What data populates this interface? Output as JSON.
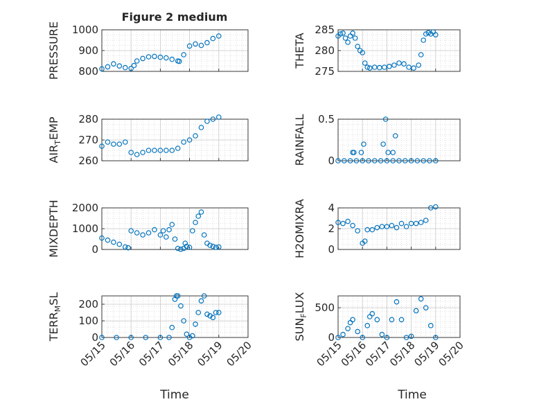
{
  "figure": {
    "title": "Figure 2 medium",
    "xlabel": "Time"
  },
  "colors": {
    "marker": "#0072BD",
    "axis": "#262626",
    "grid": "#c8c8c8"
  },
  "chart_data": [
    {
      "type": "scatter",
      "label_main": "PRESSURE",
      "label_sub": "",
      "label_tail": "",
      "xlim": [
        0,
        5
      ],
      "ylim": [
        800,
        1000
      ],
      "yticks": [
        800,
        900,
        1000
      ],
      "xtick_labels": [
        "05/15",
        "05/16",
        "05/17",
        "05/18",
        "05/19",
        "05/20"
      ],
      "show_xtick_labels": false,
      "series": [
        {
          "x": [
            0,
            0.2,
            0.4,
            0.6,
            0.8,
            1.0,
            1.1,
            1.2,
            1.4,
            1.6,
            1.8,
            2.0,
            2.2,
            2.4,
            2.6,
            2.65,
            2.8,
            3.0,
            3.2,
            3.4,
            3.6,
            3.8,
            4.0
          ],
          "y": [
            812,
            822,
            836,
            826,
            818,
            814,
            828,
            850,
            862,
            870,
            872,
            868,
            865,
            858,
            850,
            848,
            880,
            922,
            932,
            925,
            938,
            958,
            970
          ]
        }
      ]
    },
    {
      "type": "scatter",
      "label_main": "THETA",
      "label_sub": "",
      "label_tail": "",
      "xlim": [
        0,
        5
      ],
      "ylim": [
        275,
        285
      ],
      "yticks": [
        275,
        280,
        285
      ],
      "xtick_labels": [
        "05/15",
        "05/16",
        "05/17",
        "05/18",
        "05/19",
        "05/20"
      ],
      "show_xtick_labels": false,
      "series": [
        {
          "x": [
            0,
            0.1,
            0.2,
            0.3,
            0.4,
            0.5,
            0.6,
            0.7,
            0.8,
            0.9,
            1.0,
            1.1,
            1.2,
            1.3,
            1.5,
            1.7,
            1.9,
            2.1,
            2.3,
            2.5,
            2.7,
            2.9,
            3.1,
            3.3,
            3.4,
            3.5,
            3.6,
            3.7,
            3.8,
            3.9,
            4.0
          ],
          "y": [
            283.5,
            284,
            284.2,
            283,
            282,
            283.5,
            284.2,
            283,
            281,
            280,
            279.5,
            277,
            276,
            275.8,
            276,
            275.9,
            276,
            276.2,
            276.5,
            277,
            276.8,
            276,
            275.8,
            276.5,
            279,
            282.5,
            284,
            284.3,
            284,
            284.5,
            283.8
          ]
        }
      ]
    },
    {
      "type": "scatter",
      "label_main": "AIR",
      "label_sub": "T",
      "label_tail": "EMP",
      "xlim": [
        0,
        5
      ],
      "ylim": [
        260,
        280
      ],
      "yticks": [
        260,
        270,
        280
      ],
      "xtick_labels": [
        "05/15",
        "05/16",
        "05/17",
        "05/18",
        "05/19",
        "05/20"
      ],
      "show_xtick_labels": false,
      "series": [
        {
          "x": [
            0,
            0.2,
            0.4,
            0.6,
            0.8,
            1.0,
            1.2,
            1.4,
            1.6,
            1.8,
            2.0,
            2.2,
            2.4,
            2.6,
            2.8,
            3.0,
            3.2,
            3.4,
            3.6,
            3.8,
            4.0
          ],
          "y": [
            267,
            269,
            268,
            268,
            269,
            264,
            263,
            264,
            265,
            265,
            265,
            265,
            265,
            266,
            269,
            270,
            272,
            276,
            279,
            280,
            281
          ]
        }
      ]
    },
    {
      "type": "scatter",
      "label_main": "RAINFALL",
      "label_sub": "",
      "label_tail": "",
      "xlim": [
        0,
        5
      ],
      "ylim": [
        0,
        0.5
      ],
      "yticks": [
        0,
        0.5
      ],
      "xtick_labels": [
        "05/15",
        "05/16",
        "05/17",
        "05/18",
        "05/19",
        "05/20"
      ],
      "show_xtick_labels": false,
      "series": [
        {
          "x": [
            0,
            0.25,
            0.5,
            0.75,
            1.0,
            1.25,
            1.5,
            1.75,
            2.0,
            2.25,
            2.5,
            2.75,
            3.0,
            3.25,
            3.5,
            3.75,
            4.0,
            0.6,
            0.65,
            0.95,
            1.05,
            1.85,
            1.95,
            2.05,
            2.25,
            2.35
          ],
          "y": [
            0,
            0,
            0,
            0,
            0,
            0,
            0,
            0,
            0,
            0,
            0,
            0,
            0,
            0,
            0,
            0,
            0,
            0.1,
            0.1,
            0.1,
            0.2,
            0.2,
            0.5,
            0.1,
            0.1,
            0.3
          ]
        }
      ]
    },
    {
      "type": "scatter",
      "label_main": "MIXDEPTH",
      "label_sub": "",
      "label_tail": "",
      "xlim": [
        0,
        5
      ],
      "ylim": [
        0,
        2000
      ],
      "yticks": [
        0,
        1000,
        2000
      ],
      "xtick_labels": [
        "05/15",
        "05/16",
        "05/17",
        "05/18",
        "05/19",
        "05/20"
      ],
      "show_xtick_labels": false,
      "series": [
        {
          "x": [
            0,
            0.2,
            0.4,
            0.6,
            0.8,
            0.9,
            1.0,
            1.2,
            1.4,
            1.6,
            1.8,
            2.0,
            2.1,
            2.2,
            2.3,
            2.4,
            2.5,
            2.6,
            2.7,
            2.8,
            2.85,
            2.9,
            3.0,
            3.1,
            3.2,
            3.3,
            3.4,
            3.5,
            3.6,
            3.7,
            3.8,
            3.9,
            4.0
          ],
          "y": [
            550,
            450,
            350,
            250,
            120,
            80,
            900,
            800,
            700,
            800,
            950,
            700,
            900,
            600,
            950,
            1200,
            500,
            50,
            10,
            50,
            300,
            150,
            100,
            900,
            1300,
            1600,
            1800,
            700,
            300,
            200,
            150,
            100,
            120
          ]
        }
      ]
    },
    {
      "type": "scatter",
      "label_main": "H2OMIXRA",
      "label_sub": "",
      "label_tail": "",
      "xlim": [
        0,
        5
      ],
      "ylim": [
        0,
        4
      ],
      "yticks": [
        0,
        2,
        4
      ],
      "xtick_labels": [
        "05/15",
        "05/16",
        "05/17",
        "05/18",
        "05/19",
        "05/20"
      ],
      "show_xtick_labels": false,
      "series": [
        {
          "x": [
            0,
            0.2,
            0.4,
            0.6,
            0.8,
            1.0,
            1.1,
            1.2,
            1.4,
            1.6,
            1.8,
            2.0,
            2.2,
            2.4,
            2.6,
            2.8,
            3.0,
            3.2,
            3.4,
            3.6,
            3.8,
            4.0
          ],
          "y": [
            2.6,
            2.5,
            2.7,
            2.3,
            1.8,
            0.6,
            0.8,
            1.9,
            1.9,
            2.1,
            2.2,
            2.2,
            2.3,
            2.1,
            2.5,
            2.2,
            2.5,
            2.5,
            2.6,
            2.8,
            4.0,
            4.1
          ]
        }
      ]
    },
    {
      "type": "scatter",
      "label_main": "TERR",
      "label_sub": "M",
      "label_tail": "SL",
      "xlim": [
        0,
        5
      ],
      "ylim": [
        0,
        250
      ],
      "yticks": [
        0,
        100,
        200
      ],
      "xtick_labels": [
        "05/15",
        "05/16",
        "05/17",
        "05/18",
        "05/19",
        "05/20"
      ],
      "show_xtick_labels": true,
      "series": [
        {
          "x": [
            0,
            0.5,
            1.0,
            1.5,
            2.0,
            2.3,
            2.4,
            2.5,
            2.55,
            2.6,
            2.7,
            2.8,
            2.9,
            3.0,
            3.1,
            3.2,
            3.3,
            3.4,
            3.5,
            3.6,
            3.7,
            3.8,
            3.9,
            4.0
          ],
          "y": [
            0,
            0,
            0,
            0,
            0,
            0,
            60,
            230,
            250,
            250,
            190,
            100,
            20,
            0,
            10,
            80,
            150,
            220,
            250,
            140,
            130,
            120,
            150,
            150
          ]
        }
      ]
    },
    {
      "type": "scatter",
      "label_main": "SUN",
      "label_sub": "F",
      "label_tail": "LUX",
      "xlim": [
        0,
        5
      ],
      "ylim": [
        0,
        700
      ],
      "yticks": [
        0,
        500
      ],
      "xtick_labels": [
        "05/15",
        "05/16",
        "05/17",
        "05/18",
        "05/19",
        "05/20"
      ],
      "show_xtick_labels": true,
      "series": [
        {
          "x": [
            0,
            0.2,
            0.4,
            0.5,
            0.6,
            0.8,
            1.0,
            1.2,
            1.3,
            1.4,
            1.6,
            1.8,
            2.0,
            2.2,
            2.4,
            2.6,
            2.8,
            3.0,
            3.2,
            3.4,
            3.6,
            3.8,
            4.0
          ],
          "y": [
            0,
            50,
            150,
            250,
            300,
            100,
            0,
            200,
            350,
            400,
            300,
            50,
            0,
            300,
            600,
            300,
            0,
            20,
            450,
            650,
            500,
            200,
            0
          ]
        }
      ]
    }
  ]
}
